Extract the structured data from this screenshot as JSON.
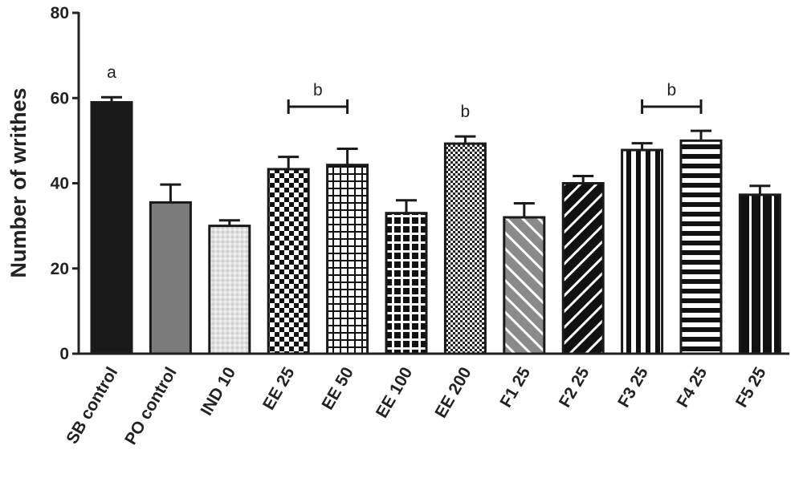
{
  "chart_data": {
    "type": "bar",
    "ylabel": "Number of writhes",
    "xlabel": "",
    "title": "",
    "ylim": [
      0,
      80
    ],
    "yticks": [
      0,
      20,
      40,
      60,
      80
    ],
    "grid": false,
    "categories": [
      "SB control",
      "PO control",
      "IND 10",
      "EE 25",
      "EE 50",
      "EE 100",
      "EE 200",
      "F1 25",
      "F2 25",
      "F3 25",
      "F4 25",
      "F5 25"
    ],
    "values": [
      59,
      35.5,
      30,
      43.3,
      44.3,
      33,
      49.3,
      32,
      40,
      47.8,
      50,
      37.3
    ],
    "errors": [
      1.2,
      4.2,
      1.3,
      2.9,
      3.8,
      3,
      1.7,
      3.3,
      1.7,
      1.6,
      2.3,
      2.1
    ],
    "patterns": [
      "solid-black",
      "solid-gray",
      "light-dots",
      "checker",
      "grid",
      "black-grid",
      "fine-checker",
      "gray-diagonal",
      "black-diagonal",
      "vertical-stripes",
      "horizontal-stripes",
      "black-vertical-stripes"
    ],
    "annotations": [
      {
        "text": "a",
        "category": "SB control",
        "bracket": false
      },
      {
        "text": "b",
        "categories": [
          "EE 25",
          "EE 50"
        ],
        "bracket": true
      },
      {
        "text": "b",
        "category": "EE 200",
        "bracket": false
      },
      {
        "text": "b",
        "categories": [
          "F3 25",
          "F4 25"
        ],
        "bracket": true
      }
    ]
  }
}
